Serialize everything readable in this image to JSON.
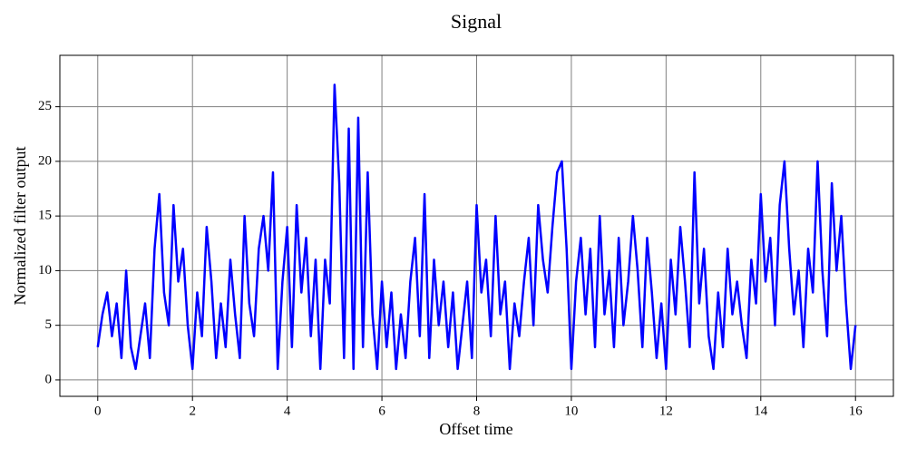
{
  "chart_data": {
    "type": "line",
    "title": "Signal",
    "xlabel": "Offset time",
    "ylabel": "Normalized filter output",
    "x": [
      0,
      0.1,
      0.2,
      0.3,
      0.4,
      0.5,
      0.6,
      0.7,
      0.8,
      0.9,
      1,
      1.1,
      1.2,
      1.3,
      1.4,
      1.5,
      1.6,
      1.7,
      1.8,
      1.9,
      2,
      2.1,
      2.2,
      2.3,
      2.4,
      2.5,
      2.6,
      2.7,
      2.8,
      2.9,
      3,
      3.1,
      3.2,
      3.3,
      3.4,
      3.5,
      3.6,
      3.7,
      3.8,
      3.9,
      4,
      4.1,
      4.2,
      4.3,
      4.4,
      4.5,
      4.6,
      4.7,
      4.8,
      4.9,
      5,
      5.1,
      5.2,
      5.3,
      5.4,
      5.5,
      5.6,
      5.7,
      5.8,
      5.9,
      6,
      6.1,
      6.2,
      6.3,
      6.4,
      6.5,
      6.6,
      6.7,
      6.8,
      6.9,
      7,
      7.1,
      7.2,
      7.3,
      7.4,
      7.5,
      7.6,
      7.7,
      7.8,
      7.9,
      8,
      8.1,
      8.2,
      8.3,
      8.4,
      8.5,
      8.6,
      8.7,
      8.8,
      8.9,
      9,
      9.1,
      9.2,
      9.3,
      9.4,
      9.5,
      9.6,
      9.7,
      9.8,
      9.9,
      10,
      10.1,
      10.2,
      10.3,
      10.4,
      10.5,
      10.6,
      10.7,
      10.8,
      10.9,
      11,
      11.1,
      11.2,
      11.3,
      11.4,
      11.5,
      11.6,
      11.7,
      11.8,
      11.9,
      12,
      12.1,
      12.2,
      12.3,
      12.4,
      12.5,
      12.6,
      12.7,
      12.8,
      12.9,
      13,
      13.1,
      13.2,
      13.3,
      13.4,
      13.5,
      13.6,
      13.7,
      13.8,
      13.9,
      14,
      14.1,
      14.2,
      14.3,
      14.4,
      14.5,
      14.6,
      14.7,
      14.8,
      14.9,
      15,
      15.1,
      15.2,
      15.3,
      15.4,
      15.5,
      15.6,
      15.7,
      15.8,
      15.9,
      16
    ],
    "values": [
      3,
      6,
      8,
      4,
      7,
      2,
      10,
      3,
      1,
      4,
      7,
      2,
      12,
      17,
      8,
      5,
      16,
      9,
      12,
      5,
      1,
      8,
      4,
      14,
      9,
      2,
      7,
      3,
      11,
      6,
      2,
      15,
      7,
      4,
      12,
      15,
      10,
      19,
      1,
      9,
      14,
      3,
      16,
      8,
      13,
      4,
      11,
      1,
      11,
      7,
      27,
      18,
      2,
      23,
      1,
      24,
      3,
      19,
      6,
      1,
      9,
      3,
      8,
      1,
      6,
      2,
      9,
      13,
      4,
      17,
      2,
      11,
      5,
      9,
      3,
      8,
      1,
      5,
      9,
      2,
      16,
      8,
      11,
      4,
      15,
      6,
      9,
      1,
      7,
      4,
      9,
      13,
      5,
      16,
      11,
      8,
      14,
      19,
      20,
      12,
      1,
      9,
      13,
      6,
      12,
      3,
      15,
      6,
      10,
      3,
      13,
      5,
      9,
      15,
      10,
      3,
      13,
      8,
      2,
      7,
      1,
      11,
      6,
      14,
      9,
      3,
      19,
      7,
      12,
      4,
      1,
      8,
      3,
      12,
      6,
      9,
      5,
      2,
      11,
      7,
      17,
      9,
      13,
      5,
      16,
      20,
      12,
      6,
      10,
      3,
      12,
      8,
      20,
      10,
      4,
      18,
      10,
      15,
      7,
      1,
      5
    ],
    "color": "#0000ff",
    "xlim": [
      -0.8,
      16.8
    ],
    "ylim": [
      -1.5,
      29.7
    ],
    "xticks": [
      0,
      2,
      4,
      6,
      8,
      10,
      12,
      14,
      16
    ],
    "yticks": [
      0,
      5,
      10,
      15,
      20,
      25
    ],
    "grid": true
  }
}
